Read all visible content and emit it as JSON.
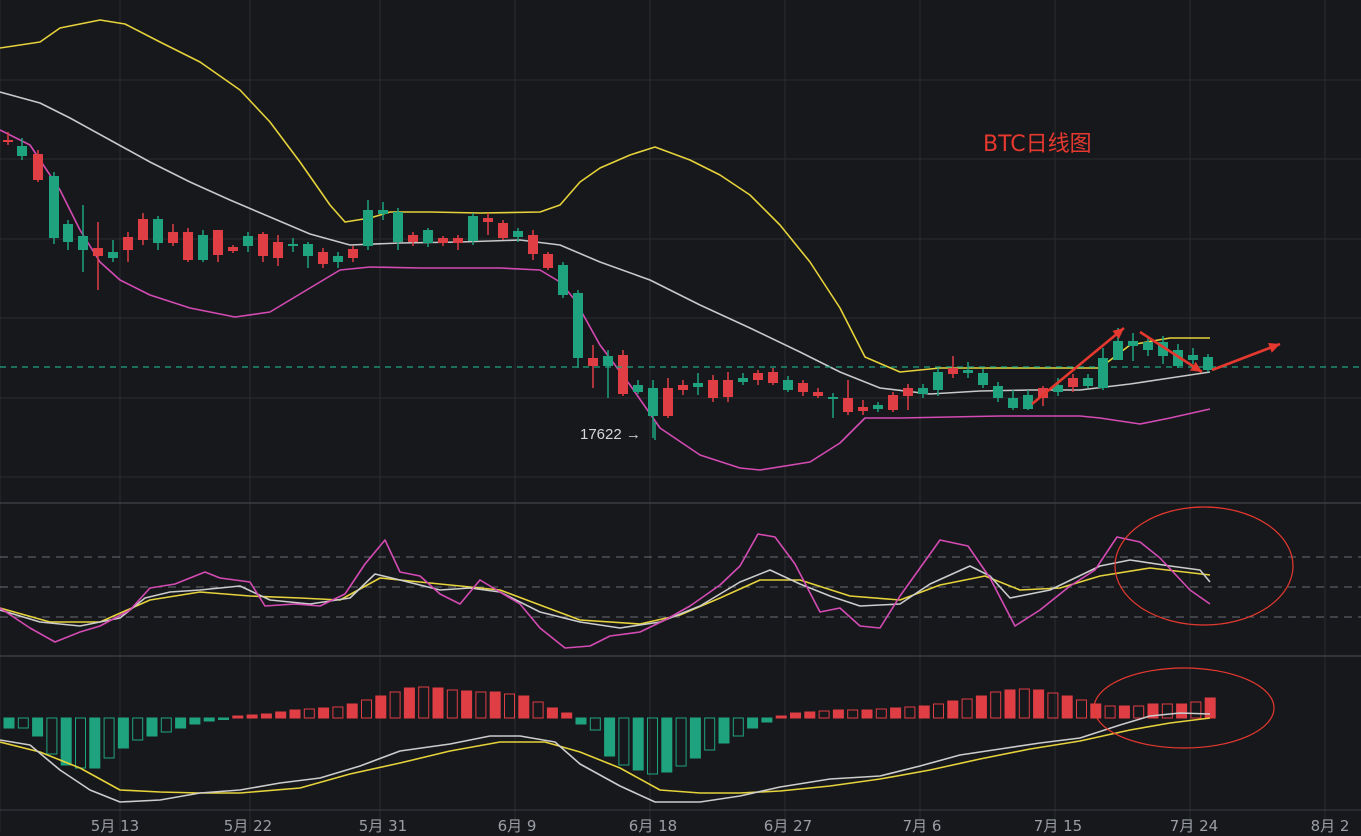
{
  "title": "BTC日线图",
  "annotation": {
    "low_label": "17622 →"
  },
  "x_ticks": [
    "5月 13",
    "5月 22",
    "5月 31",
    "6月 9",
    "6月 18",
    "6月 27",
    "7月 6",
    "7月 15",
    "7月 24",
    "8月 2"
  ],
  "colors": {
    "background": "#17181c",
    "grid": "#2a2c31",
    "up": "#1fa37f",
    "down": "#df3e45",
    "boll_upper": "#e6d23b",
    "boll_mid": "#c8c8c8",
    "boll_lower": "#d44bb4",
    "kdj_k": "#cccccc",
    "kdj_d": "#e6d23b",
    "kdj_j": "#d44bb4",
    "macd_dif": "#cccccc",
    "macd_dea": "#e6d23b",
    "annotation": "#e5392f",
    "current_price": "#1fa37f"
  },
  "chart_data": [
    {
      "type": "candlestick",
      "name": "price",
      "title": "BTC日线图",
      "overlay": [
        "BOLL upper",
        "BOLL middle",
        "BOLL lower"
      ],
      "current_price_line": "dashed",
      "annotations": [
        "17622 →",
        "arrows up-right, down-right, up-right (red)"
      ],
      "grid": true
    },
    {
      "type": "line",
      "name": "KDJ",
      "series": [
        "K",
        "D",
        "J"
      ],
      "reference_lines": "three dashed levels",
      "annotation": "red ellipse around latest values"
    },
    {
      "type": "bar",
      "name": "MACD",
      "series": [
        "histogram",
        "DIF",
        "DEA"
      ],
      "annotation": "red ellipse around latest values"
    }
  ]
}
